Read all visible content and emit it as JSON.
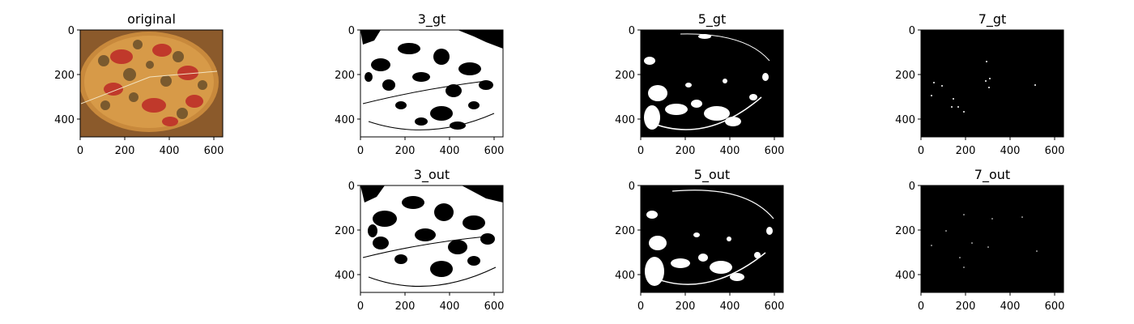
{
  "figure": {
    "panels": [
      {
        "id": "original",
        "title": "original",
        "kind": "photo"
      },
      {
        "id": "3_gt",
        "title": "3_gt",
        "kind": "mask",
        "density": "high"
      },
      {
        "id": "5_gt",
        "title": "5_gt",
        "kind": "mask",
        "density": "medium"
      },
      {
        "id": "7_gt",
        "title": "7_gt",
        "kind": "mask",
        "density": "low"
      },
      {
        "id": "3_out",
        "title": "3_out",
        "kind": "mask",
        "density": "high"
      },
      {
        "id": "5_out",
        "title": "5_out",
        "kind": "mask",
        "density": "medium"
      },
      {
        "id": "7_out",
        "title": "7_out",
        "kind": "mask",
        "density": "low"
      }
    ],
    "x_ticks": [
      "0",
      "200",
      "400",
      "600"
    ],
    "y_ticks": [
      "0",
      "200",
      "400"
    ],
    "colors": {
      "mask_bg": "#000000",
      "mask_fg": "#ffffff",
      "pizza_crust": "#c8893c",
      "pizza_sauce": "#c0392b",
      "pizza_topping": "#7a5a2e",
      "board": "#8b5a2b"
    }
  }
}
